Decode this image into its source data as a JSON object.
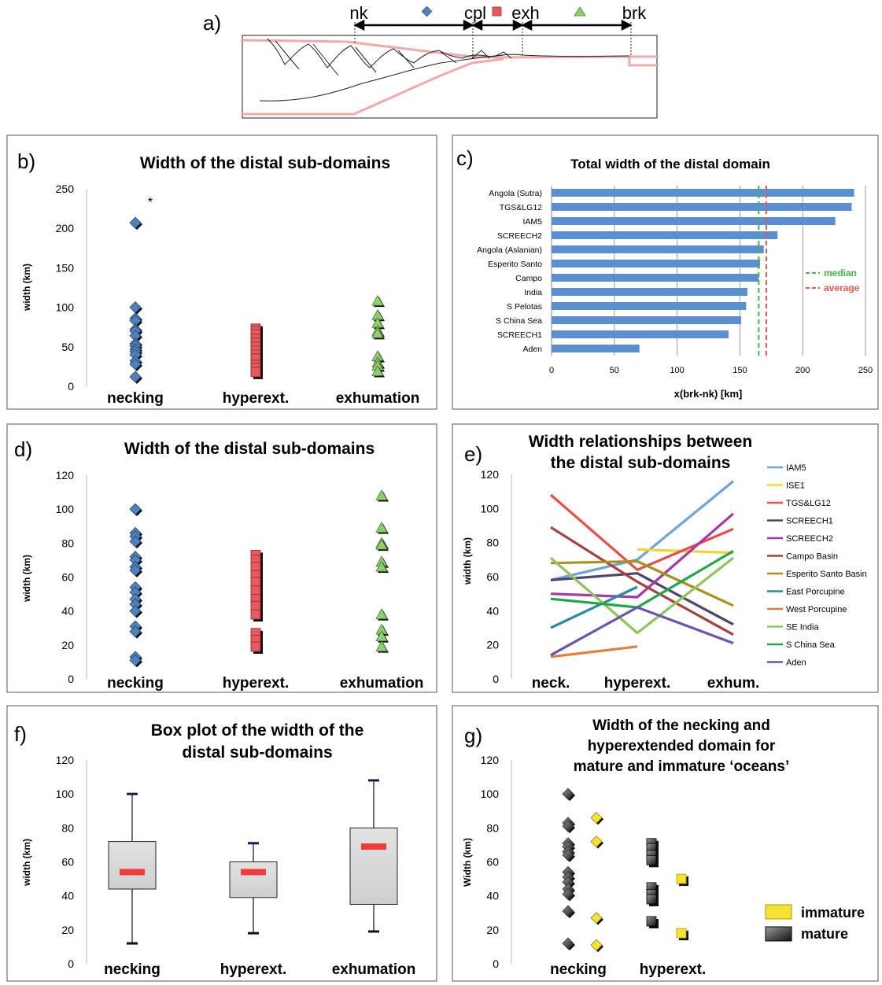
{
  "panel_a": {
    "letter": "a)",
    "labels": [
      "nk",
      "cpl",
      "exh",
      "brk"
    ],
    "symbol_colors": {
      "necking": "#4f81bd",
      "hyperext": "#e8585c",
      "exhumation": "#8fcf6e"
    }
  },
  "chart_data": [
    {
      "panel": "b)",
      "type": "scatter",
      "title": "Width of the distal sub-domains",
      "ylabel": "width (km)",
      "ylim": [
        0,
        250
      ],
      "yticks": [
        0,
        50,
        100,
        150,
        200,
        250
      ],
      "categories": [
        "necking",
        "hyperext.",
        "exhumation"
      ],
      "marker_colors": [
        "#4f81bd",
        "#e8585c",
        "#8fcf6e"
      ],
      "values": [
        [
          207,
          100,
          86,
          83,
          72,
          70,
          64,
          54,
          51,
          47,
          44,
          40,
          32,
          28,
          12
        ],
        [
          73,
          70,
          66,
          60,
          55,
          50,
          45,
          40,
          35,
          27,
          23,
          18
        ],
        [
          108,
          90,
          80,
          70,
          67,
          38,
          30,
          26,
          19
        ]
      ],
      "annotation": "*"
    },
    {
      "panel": "c)",
      "type": "bar",
      "title": "Total width of the distal domain",
      "xlabel": "x(brk-nk) [km]",
      "xlim": [
        0,
        250
      ],
      "xticks": [
        0,
        50,
        100,
        150,
        200,
        250
      ],
      "categories": [
        "Angola (Sutra)",
        "TGS&LG12",
        "IAM5",
        "SCREECH2",
        "Angola (Aslanian)",
        "Esperito Santo",
        "Campo",
        "India",
        "S Pelotas",
        "S China Sea",
        "SCREECH1",
        "Aden"
      ],
      "values": [
        241,
        239,
        226,
        180,
        169,
        166,
        165,
        156,
        155,
        151,
        141,
        70
      ],
      "bar_color": "#5b8fd0",
      "reference_lines": [
        {
          "name": "median",
          "value": 165,
          "color": "#43b543"
        },
        {
          "name": "average",
          "value": 171,
          "color": "#e8584a"
        }
      ]
    },
    {
      "panel": "d)",
      "type": "scatter",
      "title": "Width of the distal sub-domains",
      "ylabel": "width (km)",
      "ylim": [
        0,
        120
      ],
      "yticks": [
        0,
        20,
        40,
        60,
        80,
        100,
        120
      ],
      "categories": [
        "necking",
        "hyperext.",
        "exhumation"
      ],
      "marker_colors": [
        "#4f81bd",
        "#e8585c",
        "#8fcf6e"
      ],
      "values": [
        [
          100,
          86,
          84,
          81,
          72,
          70,
          66,
          64,
          54,
          51,
          47,
          44,
          40,
          31,
          28,
          13,
          11
        ],
        [
          73,
          70,
          66,
          61,
          57,
          52,
          47,
          43,
          38,
          27,
          23,
          19
        ],
        [
          108,
          89,
          80,
          79,
          69,
          66,
          38,
          29,
          25,
          19
        ]
      ]
    },
    {
      "panel": "e)",
      "type": "line",
      "title": "Width relationships between the distal sub-domains",
      "ylim": [
        0,
        120
      ],
      "yticks": [
        0,
        20,
        40,
        60,
        80,
        100,
        120
      ],
      "categories": [
        "neck.",
        "hyperext.",
        "exhum."
      ],
      "series": [
        {
          "name": "IAM5",
          "color": "#6fa3dc",
          "values": [
            58,
            70,
            116
          ]
        },
        {
          "name": "ISE1",
          "color": "#f6d32d",
          "values": [
            null,
            76,
            74
          ]
        },
        {
          "name": "TGS&LG12",
          "color": "#ea4d46",
          "values": [
            108,
            64,
            88
          ]
        },
        {
          "name": "SCREECH1",
          "color": "#4a4768",
          "values": [
            58,
            62,
            32
          ]
        },
        {
          "name": "SCREECH2",
          "color": "#a23aa7",
          "values": [
            50,
            48,
            97
          ]
        },
        {
          "name": "Campo Basin",
          "color": "#a6423e",
          "values": [
            89,
            57,
            26
          ]
        },
        {
          "name": "Esperito Santo Basin",
          "color": "#a8911d",
          "values": [
            68,
            69,
            43
          ]
        },
        {
          "name": "East Porcupine",
          "color": "#2b8c9d",
          "values": [
            30,
            54,
            null
          ]
        },
        {
          "name": "West Porcupine",
          "color": "#e27f3a",
          "values": [
            13,
            19,
            null
          ]
        },
        {
          "name": "SE India",
          "color": "#8ec45c",
          "values": [
            71,
            27,
            71
          ]
        },
        {
          "name": "S China Sea",
          "color": "#1fa84a",
          "values": [
            47,
            42,
            75
          ]
        },
        {
          "name": "Aden",
          "color": "#6b53b0",
          "values": [
            14,
            42,
            21
          ]
        }
      ]
    },
    {
      "panel": "f)",
      "type": "box",
      "title": "Box plot of the width of the distal sub-domains",
      "ylabel": "width (km)",
      "ylim": [
        0,
        120
      ],
      "yticks": [
        0,
        20,
        40,
        60,
        80,
        100,
        120
      ],
      "categories": [
        "necking",
        "hyperext.",
        "exhumation"
      ],
      "boxes": [
        {
          "min": 12,
          "q1": 44,
          "median": 54,
          "q3": 72,
          "max": 100
        },
        {
          "min": 18,
          "q1": 39,
          "median": 54,
          "q3": 60,
          "max": 71
        },
        {
          "min": 19,
          "q1": 35,
          "median": 69,
          "q3": 80,
          "max": 108
        }
      ],
      "box_color": "#d9d9d9",
      "median_color": "#ef3b39"
    },
    {
      "panel": "g)",
      "type": "scatter",
      "title": "Width of the necking and hyperextended domain for mature and immature ‘oceans’",
      "ylabel": "Width (km)",
      "ylim": [
        0,
        120
      ],
      "yticks": [
        0,
        20,
        40,
        60,
        80,
        100,
        120
      ],
      "categories": [
        "necking",
        "hyperext."
      ],
      "series": [
        {
          "name": "mature",
          "color": "#333333",
          "necking": [
            100,
            83,
            81,
            71,
            69,
            66,
            64,
            54,
            51,
            48,
            44,
            41,
            31,
            12
          ],
          "hyperext": [
            71,
            68,
            64,
            61,
            45,
            41,
            38,
            25
          ]
        },
        {
          "name": "immature",
          "color": "#f5e233",
          "necking": [
            86,
            72,
            27,
            11
          ],
          "hyperext": [
            50,
            18
          ]
        }
      ]
    }
  ]
}
